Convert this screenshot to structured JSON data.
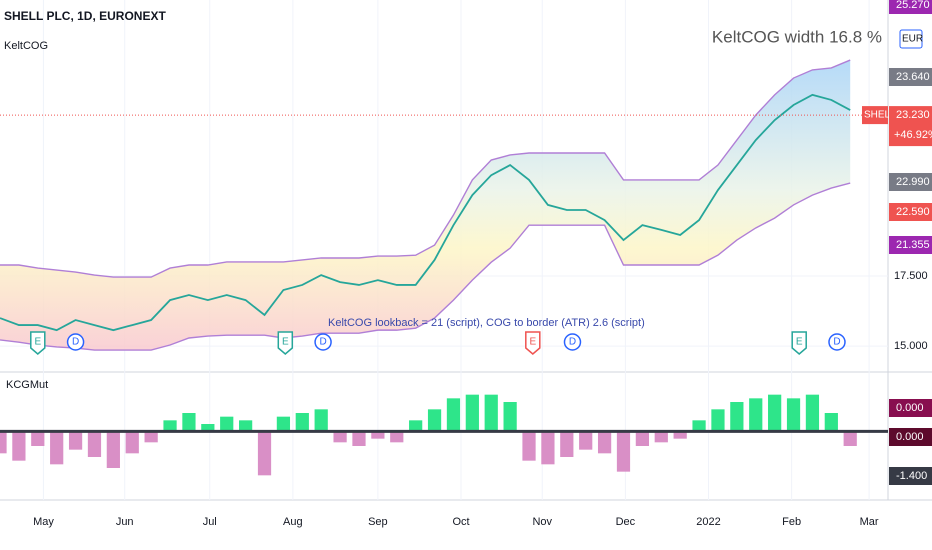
{
  "chart_data": {
    "type": "line",
    "title": "SHELL PLC, 1D, EURONEXT",
    "indicator": "KeltCOG",
    "annotation": "KeltCOG width 16.8 %",
    "status": "KeltCOG lookback = 21 (script), COG to border (ATR) 2.6 (script)",
    "currency": "EUR",
    "x": [
      0,
      1,
      2,
      3,
      4,
      5,
      6,
      7,
      8,
      9,
      10,
      11,
      12,
      13,
      14,
      15,
      16,
      17,
      18,
      19,
      20,
      21,
      22,
      23,
      24,
      25,
      26,
      27,
      28,
      29,
      30,
      31,
      32,
      33,
      34,
      35,
      36,
      37,
      38,
      39,
      40,
      41,
      42,
      43,
      44,
      45
    ],
    "series": [
      {
        "color": "#b07fd6",
        "values": [
          17.89,
          17.89,
          17.78,
          17.71,
          17.64,
          17.53,
          17.46,
          17.46,
          17.46,
          17.78,
          17.89,
          17.89,
          18.0,
          18.0,
          18.0,
          18.0,
          18.07,
          18.14,
          18.14,
          18.14,
          18.21,
          18.21,
          18.24,
          18.6,
          19.67,
          20.92,
          21.63,
          21.81,
          21.88,
          21.88,
          21.88,
          21.88,
          21.88,
          20.92,
          20.92,
          20.92,
          20.92,
          20.92,
          21.45,
          22.34,
          23.23,
          23.95,
          24.55,
          24.84,
          24.91,
          25.19
        ]
      },
      {
        "color": "#b07fd6",
        "values": [
          15.22,
          15.14,
          15.04,
          14.97,
          14.93,
          14.86,
          14.86,
          14.86,
          14.86,
          15.04,
          15.29,
          15.36,
          15.39,
          15.39,
          15.39,
          15.29,
          15.36,
          15.46,
          15.46,
          15.46,
          15.57,
          15.57,
          15.64,
          16.0,
          16.64,
          17.35,
          17.99,
          18.49,
          19.31,
          19.31,
          19.31,
          19.31,
          19.31,
          17.89,
          17.89,
          17.89,
          17.89,
          17.89,
          18.24,
          18.78,
          19.21,
          19.56,
          20.03,
          20.38,
          20.63,
          20.81
        ]
      },
      {
        "color": "#26a69a",
        "values": [
          16.0,
          15.75,
          15.75,
          15.57,
          15.93,
          15.75,
          15.57,
          15.75,
          15.93,
          16.64,
          16.82,
          16.64,
          16.82,
          16.64,
          16.11,
          17.0,
          17.18,
          17.53,
          17.28,
          17.18,
          17.35,
          17.18,
          17.18,
          18.07,
          19.31,
          20.38,
          21.09,
          21.45,
          20.92,
          20.03,
          19.85,
          19.85,
          19.49,
          18.78,
          19.31,
          19.14,
          18.96,
          19.49,
          20.56,
          21.45,
          22.34,
          23.05,
          23.59,
          23.95,
          23.77,
          23.41
        ]
      }
    ],
    "xlim": [
      0,
      47
    ],
    "xticks": [
      {
        "value": 2.3,
        "label": "May"
      },
      {
        "value": 6.6,
        "label": "Jun"
      },
      {
        "value": 11.1,
        "label": "Jul"
      },
      {
        "value": 15.5,
        "label": "Aug"
      },
      {
        "value": 20,
        "label": "Sep"
      },
      {
        "value": 24.4,
        "label": "Oct"
      },
      {
        "value": 28.7,
        "label": "Nov"
      },
      {
        "value": 33.1,
        "label": "Dec"
      },
      {
        "value": 37.5,
        "label": "2022"
      },
      {
        "value": 41.9,
        "label": "Feb"
      },
      {
        "value": 46,
        "label": "Mar"
      }
    ],
    "ylim": [
      14.15,
      27.33
    ],
    "yticks": [
      {
        "value": 15,
        "label": "15.000"
      },
      {
        "value": 17.5,
        "label": "17.500"
      }
    ],
    "grid": true,
    "last_price": {
      "value": 23.23,
      "label": "23.230",
      "name": "SHELL",
      "change": "+46.92%",
      "color": "#ef5350"
    },
    "price_labels": [
      {
        "label": "25.270",
        "color": "#9c27b0"
      },
      {
        "label": "23.640",
        "color": "#787b86"
      },
      {
        "label": "22.990",
        "color": "#787b86"
      },
      {
        "label": "22.590",
        "color": "#ef5350"
      },
      {
        "label": "21.355",
        "color": "#9c27b0"
      }
    ],
    "events": [
      {
        "label": "E",
        "x": 2.0,
        "color": "#26a69a"
      },
      {
        "label": "D",
        "x": 4.0,
        "color": "#2962ff"
      },
      {
        "label": "E",
        "x": 15.1,
        "color": "#26a69a"
      },
      {
        "label": "D",
        "x": 17.1,
        "color": "#2962ff"
      },
      {
        "label": "E",
        "x": 28.2,
        "color": "#ef5350"
      },
      {
        "label": "D",
        "x": 30.3,
        "color": "#2962ff"
      },
      {
        "label": "E",
        "x": 42.3,
        "color": "#26a69a"
      },
      {
        "label": "D",
        "x": 44.3,
        "color": "#2962ff"
      }
    ],
    "oscillator": {
      "type": "bar",
      "title": "KCGMut",
      "up_color": "#2ee58a",
      "down_color": "#d98fc6",
      "values": [
        -0.6,
        -0.8,
        -0.4,
        -0.9,
        -0.5,
        -0.7,
        -1.0,
        -0.6,
        -0.3,
        0.3,
        0.5,
        0.2,
        0.4,
        0.3,
        -1.2,
        0.4,
        0.5,
        0.6,
        -0.3,
        -0.4,
        -0.2,
        -0.3,
        0.3,
        0.6,
        0.9,
        1.0,
        1.0,
        0.8,
        -0.8,
        -0.9,
        -0.7,
        -0.5,
        -0.6,
        -1.1,
        -0.4,
        -0.3,
        -0.2,
        0.3,
        0.6,
        0.8,
        0.9,
        1.0,
        0.9,
        1.0,
        0.5,
        -0.4
      ],
      "ylim": [
        -1.6,
        1.4
      ],
      "labels": [
        {
          "label": "0.000",
          "color": "#880e4f"
        },
        {
          "label": "0.000",
          "color": "#5d0a2c"
        },
        {
          "label": "-1.400",
          "color": "#363a45"
        }
      ]
    }
  }
}
